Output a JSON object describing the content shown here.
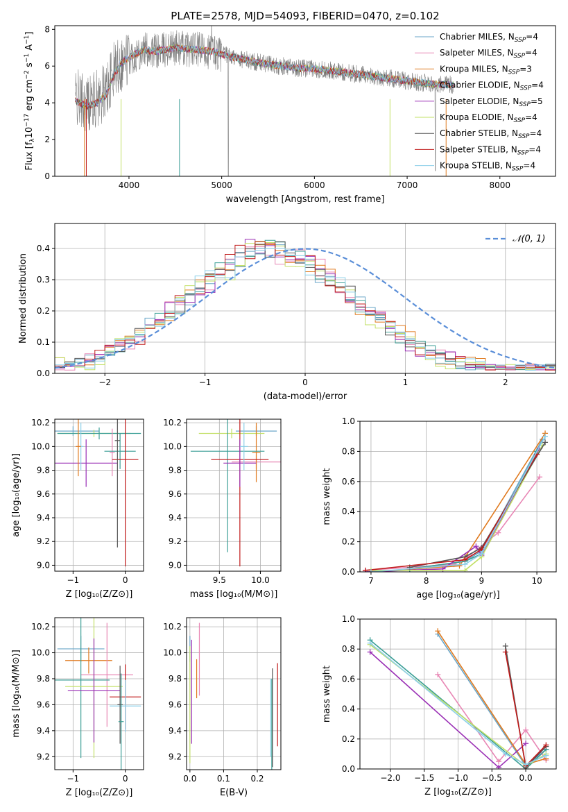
{
  "title": "PLATE=2578, MJD=54093, FIBERID=0470, z=0.102",
  "colors": {
    "chabrier_miles": "#6aa6c8",
    "salpeter_miles": "#e887b5",
    "kroupa_miles": "#e07a1f",
    "chabrier_elodie": "#3a9e95",
    "salpeter_elodie": "#9a2fb5",
    "kroupa_elodie": "#c2e066",
    "chabrier_stelib": "#555555",
    "salpeter_stelib": "#c01a1a",
    "kroupa_stelib": "#8ccfe8",
    "normal_curve": "#5a8ed8",
    "spectrum": "#808080",
    "grid": "#b0b0b0"
  },
  "chart_data": [
    {
      "type": "line",
      "title": "PLATE=2578, MJD=54093, FIBERID=0470, z=0.102",
      "xlabel": "wavelength [Angstrom, rest frame]",
      "ylabel_parts": [
        "Flux [f",
        "λ",
        "10",
        "−17",
        " erg cm",
        "−2",
        " s",
        "−1",
        " A",
        "−1",
        "]"
      ],
      "xlim": [
        3200,
        8600
      ],
      "ylim": [
        0,
        8.2
      ],
      "xticks": [
        4000,
        5000,
        6000,
        7000,
        8000
      ],
      "yticks": [
        0,
        2,
        4,
        6,
        8
      ],
      "grid": false,
      "legend_position": "upper right",
      "series": [
        {
          "name": "Chabrier MILES, N",
          "sub": "SSP",
          "suffix": "=4"
        },
        {
          "name": "Salpeter MILES, N",
          "sub": "SSP",
          "suffix": "=4"
        },
        {
          "name": "Kroupa MILES, N",
          "sub": "SSP",
          "suffix": "=3"
        },
        {
          "name": "Chabrier ELODIE, N",
          "sub": "SSP",
          "suffix": "=4"
        },
        {
          "name": "Salpeter ELODIE, N",
          "sub": "SSP",
          "suffix": "=5"
        },
        {
          "name": "Kroupa ELODIE, N",
          "sub": "SSP",
          "suffix": "=4"
        },
        {
          "name": "Chabrier STELIB, N",
          "sub": "SSP",
          "suffix": "=4"
        },
        {
          "name": "Salpeter STELIB, N",
          "sub": "SSP",
          "suffix": "=4"
        },
        {
          "name": "Kroupa STELIB, N",
          "sub": "SSP",
          "suffix": "=4"
        }
      ],
      "model_continuum": {
        "x": [
          3420,
          3550,
          3650,
          3750,
          3850,
          3950,
          4050,
          4150,
          4300,
          4500,
          4700,
          4900,
          5100,
          5300,
          5500,
          5800,
          6100,
          6400,
          6700,
          7000,
          7300,
          7500
        ],
        "y": [
          4.3,
          4.0,
          4.2,
          4.6,
          5.9,
          6.3,
          6.6,
          6.9,
          6.8,
          7.0,
          6.9,
          6.8,
          6.5,
          6.3,
          6.1,
          5.9,
          5.8,
          5.6,
          5.4,
          5.2,
          5.0,
          5.0
        ]
      }
    },
    {
      "type": "bar",
      "xlabel": "(data-model)/error",
      "ylabel": "Normed distribution",
      "xlim": [
        -2.5,
        2.5
      ],
      "ylim": [
        0,
        0.48
      ],
      "xticks": [
        -2,
        -1,
        0,
        1,
        2
      ],
      "xtick_labels": [
        "−2",
        "−1",
        "0",
        "1",
        "2"
      ],
      "yticks": [
        0,
        0.1,
        0.2,
        0.3,
        0.4
      ],
      "ytick_labels": [
        "0.0",
        "0.1",
        "0.2",
        "0.3",
        "0.4"
      ],
      "grid": true,
      "legend_position": "upper right",
      "legend_label": "𝒩(0, 1)",
      "bin_width": 0.1,
      "bin_start": -2.5,
      "reference_values": [
        0.018,
        0.024,
        0.032,
        0.042,
        0.054,
        0.068,
        0.084,
        0.102,
        0.123,
        0.146,
        0.17,
        0.196,
        0.223,
        0.25,
        0.277,
        0.303,
        0.327,
        0.349,
        0.368,
        0.384,
        0.395,
        0.399,
        0.395,
        0.384,
        0.368,
        0.349,
        0.327,
        0.303,
        0.277,
        0.25,
        0.223,
        0.196,
        0.17,
        0.146,
        0.123,
        0.102,
        0.084,
        0.068,
        0.054,
        0.042,
        0.032,
        0.024,
        0.018,
        0.013,
        0.009,
        0.006,
        0.004,
        0.003,
        0.002,
        0.001
      ],
      "series_offsets": [
        0.012,
        -0.018,
        0.026,
        -0.01,
        0.02,
        -0.024,
        0.008,
        -0.014,
        0.018
      ]
    },
    {
      "type": "scatter",
      "xlabel": "Z [log₁₀(Z/Z⊙)]",
      "ylabel": "age  [log₁₀(age/yr)]",
      "xlim": [
        -1.35,
        0.35
      ],
      "ylim": [
        8.95,
        10.23
      ],
      "xticks": [
        -1,
        0
      ],
      "xtick_labels": [
        "−1",
        "0"
      ],
      "yticks": [
        9.0,
        9.2,
        9.4,
        9.6,
        9.8,
        10.0,
        10.2
      ],
      "ytick_labels": [
        "9.0",
        "9.2",
        "9.4",
        "9.6",
        "9.8",
        "10.0",
        "10.2"
      ],
      "grid": true,
      "points": [
        {
          "s": 0,
          "x": -1.0,
          "y": 10.13,
          "xe": 0.5,
          "ye": 0.04
        },
        {
          "s": 5,
          "x": -0.6,
          "y": 10.11,
          "xe": 0.7,
          "ye": 0.03
        },
        {
          "s": 3,
          "x": -0.5,
          "y": 10.11,
          "xe": 0.8,
          "ye": 0.05
        },
        {
          "s": 4,
          "x": -0.75,
          "y": 9.86,
          "xe": 0.6,
          "ye": 0.2
        },
        {
          "s": 1,
          "x": -0.25,
          "y": 9.95,
          "xe": 0.05,
          "ye": 0.2
        },
        {
          "s": 3,
          "x": -0.1,
          "y": 9.96,
          "xe": 0.3,
          "ye": 0.15
        },
        {
          "s": 7,
          "x": 0.0,
          "y": 9.89,
          "xe": 0.25,
          "ye": 0.9
        },
        {
          "s": 6,
          "x": -0.15,
          "y": 10.05,
          "xe": 0.05,
          "ye": 0.9
        },
        {
          "s": 8,
          "x": -0.85,
          "y": 10.0,
          "xe": 0.05,
          "ye": 0.2
        },
        {
          "s": 2,
          "x": -0.9,
          "y": 10.0,
          "xe": 0.05,
          "ye": 0.25
        }
      ]
    },
    {
      "type": "scatter",
      "xlabel": "mass [log₁₀(M/M⊙)]",
      "ylabel": "",
      "xlim": [
        9.1,
        10.25
      ],
      "ylim": [
        8.95,
        10.23
      ],
      "xticks": [
        9.5,
        10.0
      ],
      "xtick_labels": [
        "9.5",
        "10.0"
      ],
      "yticks": [
        9.0,
        9.2,
        9.4,
        9.6,
        9.8,
        10.0,
        10.2
      ],
      "ytick_labels": [
        "9.0",
        "9.2",
        "9.4",
        "9.6",
        "9.8",
        "10.0",
        "10.2"
      ],
      "grid": true,
      "points": [
        {
          "s": 0,
          "x": 9.95,
          "y": 10.13,
          "xe": 0.25,
          "ye": 0.04
        },
        {
          "s": 5,
          "x": 9.65,
          "y": 10.11,
          "xe": 0.4,
          "ye": 0.04
        },
        {
          "s": 1,
          "x": 9.95,
          "y": 9.87,
          "xe": 0.3,
          "ye": 0.06
        },
        {
          "s": 2,
          "x": 9.95,
          "y": 9.95,
          "xe": 0.05,
          "ye": 0.25
        },
        {
          "s": 3,
          "x": 9.6,
          "y": 9.96,
          "xe": 0.45,
          "ye": 0.85
        },
        {
          "s": 7,
          "x": 9.75,
          "y": 9.89,
          "xe": 0.35,
          "ye": 0.9
        },
        {
          "s": 4,
          "x": 9.75,
          "y": 9.86,
          "xe": 0.2,
          "ye": 0.2
        },
        {
          "s": 8,
          "x": 9.8,
          "y": 10.0,
          "xe": 0.05,
          "ye": 0.2
        }
      ]
    },
    {
      "type": "line",
      "xlabel": "age  [log₁₀(age/yr)]",
      "ylabel": "mass weight",
      "xlim": [
        6.8,
        10.35
      ],
      "ylim": [
        0,
        1.0
      ],
      "xticks": [
        7,
        8,
        9,
        10
      ],
      "xtick_labels": [
        "7",
        "8",
        "9",
        "10"
      ],
      "yticks": [
        0,
        0.2,
        0.4,
        0.6,
        0.8,
        1.0
      ],
      "ytick_labels": [
        "0.0",
        "0.2",
        "0.4",
        "0.6",
        "0.8",
        "1.0"
      ],
      "grid": true,
      "series": [
        {
          "s": 0,
          "x": [
            7.7,
            8.7,
            9.0,
            10.1
          ],
          "y": [
            0.02,
            0.07,
            0.14,
            0.88
          ]
        },
        {
          "s": 1,
          "x": [
            6.9,
            8.5,
            8.75,
            9.3,
            10.05
          ],
          "y": [
            0.01,
            0.05,
            0.1,
            0.26,
            0.63
          ]
        },
        {
          "s": 2,
          "x": [
            7.0,
            8.6,
            10.15
          ],
          "y": [
            0.0,
            0.04,
            0.92
          ]
        },
        {
          "s": 3,
          "x": [
            7.7,
            8.7,
            9.0,
            10.0
          ],
          "y": [
            0.02,
            0.07,
            0.12,
            0.8
          ]
        },
        {
          "s": 4,
          "x": [
            6.9,
            8.3,
            8.9,
            9.0,
            10.05
          ],
          "y": [
            0.0,
            0.02,
            0.17,
            0.11,
            0.82
          ]
        },
        {
          "s": 5,
          "x": [
            7.0,
            8.7,
            9.0,
            10.1
          ],
          "y": [
            0.01,
            0.01,
            0.1,
            0.84
          ]
        },
        {
          "s": 6,
          "x": [
            7.7,
            8.7,
            9.0,
            10.15
          ],
          "y": [
            0.03,
            0.1,
            0.16,
            0.86
          ]
        },
        {
          "s": 7,
          "x": [
            6.9,
            8.7,
            9.0,
            10.0
          ],
          "y": [
            0.01,
            0.08,
            0.15,
            0.78
          ]
        },
        {
          "s": 8,
          "x": [
            7.0,
            8.7,
            9.0,
            10.15
          ],
          "y": [
            0.0,
            0.05,
            0.12,
            0.9
          ]
        }
      ]
    },
    {
      "type": "scatter",
      "xlabel": "Z [log₁₀(Z/Z⊙)]",
      "ylabel": "mass [log₁₀(M/M⊙)]",
      "xlim": [
        -1.35,
        0.35
      ],
      "ylim": [
        9.1,
        10.27
      ],
      "xticks": [
        -1,
        0
      ],
      "xtick_labels": [
        "−1",
        "0"
      ],
      "yticks": [
        9.2,
        9.4,
        9.6,
        9.8,
        10.0,
        10.2
      ],
      "ytick_labels": [
        "9.2",
        "9.4",
        "9.6",
        "9.8",
        "10.0",
        "10.2"
      ],
      "grid": true,
      "points": [
        {
          "s": 0,
          "x": -0.85,
          "y": 10.03,
          "xe": 0.45,
          "ye": 0.1
        },
        {
          "s": 2,
          "x": -0.7,
          "y": 9.94,
          "xe": 0.45,
          "ye": 0.1
        },
        {
          "s": 1,
          "x": -0.35,
          "y": 9.83,
          "xe": 0.5,
          "ye": 0.4
        },
        {
          "s": 3,
          "x": -0.85,
          "y": 9.79,
          "xe": 0.55,
          "ye": 0.6
        },
        {
          "s": 5,
          "x": -0.6,
          "y": 9.74,
          "xe": 0.55,
          "ye": 0.55
        },
        {
          "s": 4,
          "x": -0.6,
          "y": 9.71,
          "xe": 0.5,
          "ye": 0.4
        },
        {
          "s": 7,
          "x": 0.0,
          "y": 9.66,
          "xe": 0.3,
          "ye": 0.25
        },
        {
          "s": 8,
          "x": 0.0,
          "y": 9.59,
          "xe": 0.3,
          "ye": 0.2
        },
        {
          "s": 6,
          "x": -0.1,
          "y": 9.6,
          "xe": 0.05,
          "ye": 0.3
        },
        {
          "s": 3,
          "x": -0.08,
          "y": 9.47,
          "xe": 0.05,
          "ye": 0.37
        }
      ]
    },
    {
      "type": "scatter",
      "xlabel": "E(B-V)",
      "ylabel": "",
      "xlim": [
        -0.01,
        0.27
      ],
      "ylim": [
        9.1,
        10.27
      ],
      "xticks": [
        0.0,
        0.1,
        0.2
      ],
      "xtick_labels": [
        "0.0",
        "0.1",
        "0.2"
      ],
      "yticks": [
        9.2,
        9.4,
        9.6,
        9.8,
        10.0,
        10.2
      ],
      "ytick_labels": [
        "9.2",
        "9.4",
        "9.6",
        "9.8",
        "10.0",
        "10.2"
      ],
      "grid": true,
      "points": [
        {
          "s": 0,
          "x": 0.0,
          "y": 10.03,
          "xe": 0.0,
          "ye": 0.1
        },
        {
          "s": 5,
          "x": 0.0,
          "y": 9.6,
          "xe": 0.0,
          "ye": 0.45
        },
        {
          "s": 4,
          "x": 0.005,
          "y": 9.7,
          "xe": 0.0,
          "ye": 0.4
        },
        {
          "s": 2,
          "x": 0.02,
          "y": 9.8,
          "xe": 0.0,
          "ye": 0.15
        },
        {
          "s": 1,
          "x": 0.028,
          "y": 9.95,
          "xe": 0.0,
          "ye": 0.28
        },
        {
          "s": 8,
          "x": 0.24,
          "y": 9.5,
          "xe": 0.0,
          "ye": 0.3
        },
        {
          "s": 3,
          "x": 0.243,
          "y": 9.45,
          "xe": 0.0,
          "ye": 0.35
        },
        {
          "s": 6,
          "x": 0.245,
          "y": 9.5,
          "xe": 0.0,
          "ye": 0.38
        },
        {
          "s": 7,
          "x": 0.26,
          "y": 9.6,
          "xe": 0.0,
          "ye": 0.32
        }
      ]
    },
    {
      "type": "line",
      "xlabel": "Z [log₁₀(Z/Z⊙)]",
      "ylabel": "mass weight",
      "xlim": [
        -2.45,
        0.45
      ],
      "ylim": [
        0,
        1.0
      ],
      "xticks": [
        -2.0,
        -1.5,
        -1.0,
        -0.5,
        0.0
      ],
      "xtick_labels": [
        "−2.0",
        "−1.5",
        "−1.0",
        "−0.5",
        "0.0"
      ],
      "yticks": [
        0,
        0.2,
        0.4,
        0.6,
        0.8,
        1.0
      ],
      "ytick_labels": [
        "0.0",
        "0.2",
        "0.4",
        "0.6",
        "0.8",
        "1.0"
      ],
      "grid": true,
      "series": [
        {
          "s": 0,
          "x": [
            -1.3,
            0.0,
            0.3
          ],
          "y": [
            0.9,
            0.02,
            0.13
          ]
        },
        {
          "s": 1,
          "x": [
            -1.3,
            -0.4,
            0.0,
            0.3
          ],
          "y": [
            0.63,
            0.05,
            0.26,
            0.06
          ]
        },
        {
          "s": 2,
          "x": [
            -1.3,
            0.0,
            0.3
          ],
          "y": [
            0.92,
            0.03,
            0.07
          ]
        },
        {
          "s": 3,
          "x": [
            -2.3,
            0.0,
            0.3
          ],
          "y": [
            0.86,
            0.0,
            0.13
          ]
        },
        {
          "s": 4,
          "x": [
            -2.3,
            -0.4,
            0.0
          ],
          "y": [
            0.78,
            0.01,
            0.17
          ]
        },
        {
          "s": 5,
          "x": [
            -2.3,
            0.0,
            0.3
          ],
          "y": [
            0.83,
            0.02,
            0.1
          ]
        },
        {
          "s": 6,
          "x": [
            -0.3,
            0.0,
            0.3
          ],
          "y": [
            0.82,
            0.01,
            0.15
          ]
        },
        {
          "s": 7,
          "x": [
            -0.3,
            0.0,
            0.3
          ],
          "y": [
            0.78,
            0.02,
            0.16
          ]
        },
        {
          "s": 8,
          "x": [
            -2.3,
            -0.3,
            0.0,
            0.3
          ],
          "y": [
            0.84,
            0.1,
            0.03,
            0.09
          ]
        }
      ]
    }
  ]
}
